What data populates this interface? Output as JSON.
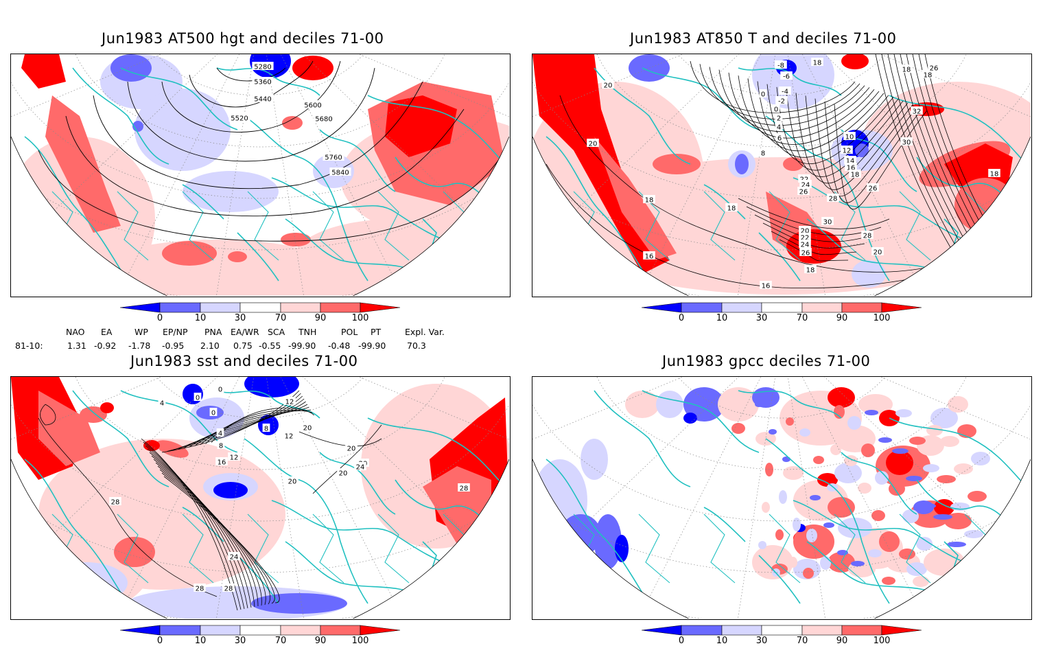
{
  "panels": [
    {
      "id": "hgt",
      "title": "Jun1983 AT500 hgt and deciles 71-00",
      "contour_labels": [
        "5280",
        "5360",
        "5440",
        "5520",
        "5600",
        "5680",
        "5760",
        "5840"
      ]
    },
    {
      "id": "t850",
      "title": "Jun1983 AT850 T and deciles 71-00",
      "contour_labels": [
        "-8",
        "-6",
        "-4",
        "-2",
        "0",
        "0",
        "2",
        "4",
        "6",
        "8",
        "10",
        "12",
        "14",
        "16",
        "18",
        "18",
        "18",
        "18",
        "20",
        "20",
        "22",
        "24",
        "26",
        "26",
        "28",
        "28",
        "30",
        "30",
        "32",
        "16",
        "18",
        "20",
        "22",
        "24",
        "26",
        "18",
        "18",
        "16",
        "20",
        "18",
        "26"
      ]
    },
    {
      "id": "sst",
      "title": "Jun1983 sst and deciles 71-00",
      "contour_labels": [
        "0",
        "0",
        "0",
        "4",
        "8",
        "8",
        "12",
        "12",
        "16",
        "20",
        "20",
        "20",
        "20",
        "24",
        "24",
        "28",
        "28",
        "28",
        "28",
        "4",
        "12",
        "20"
      ]
    },
    {
      "id": "gpcc",
      "title": "Jun1983 gpcc deciles 71-00",
      "contour_labels": []
    }
  ],
  "colorbar": {
    "labels": [
      "0",
      "10",
      "30",
      "70",
      "90",
      "100"
    ],
    "colors": [
      "#0000ff",
      "#6a6aff",
      "#d6d6ff",
      "#ffffff",
      "#ffd6d6",
      "#ff6a6a",
      "#ff0000"
    ]
  },
  "indices": {
    "headers": [
      "NAO",
      "EA",
      "WP",
      "EP/NP",
      "PNA",
      "EA/WR",
      "SCA",
      "TNH",
      "POL",
      "PT",
      "Expl. Var."
    ],
    "row_label": "81-10:",
    "values": [
      "1.31",
      "-0.92",
      "-1.78",
      "-0.95",
      "2.10",
      "0.75",
      "-0.55",
      "-99.90",
      "-0.48",
      "-99.90",
      "70.3"
    ]
  },
  "colors": {
    "coast": "#20c0c0",
    "contour": "#000000",
    "grid": "#888888"
  }
}
